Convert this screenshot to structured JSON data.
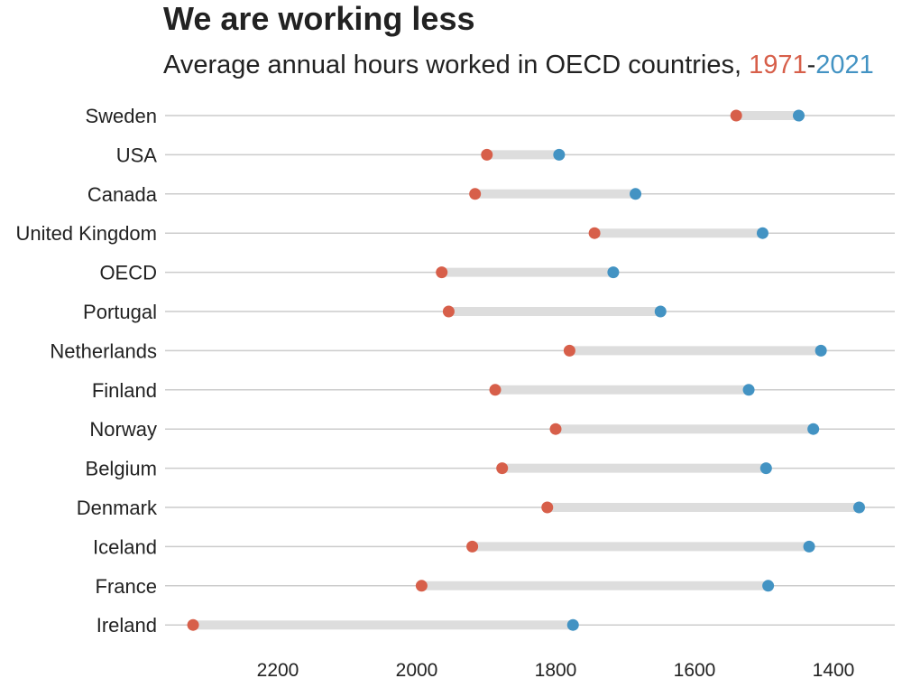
{
  "chart_data": {
    "type": "dumbbell",
    "title": "We are working less",
    "subtitle_prefix": "Average annual hours worked in OECD countries, ",
    "subtitle_start": "1971",
    "subtitle_separator": "-",
    "subtitle_end": "2021",
    "colors": {
      "start": "#d75f4a",
      "end": "#4393c3",
      "connector": "#dddddd",
      "gridline": "#cccccc",
      "text": "#222222"
    },
    "x_axis": {
      "reversed": true,
      "range": [
        2320,
        1360
      ],
      "ticks": [
        2200,
        2000,
        1800,
        1600,
        1400
      ]
    },
    "series": [
      {
        "name": "1971",
        "color_key": "start"
      },
      {
        "name": "2021",
        "color_key": "end"
      }
    ],
    "countries": [
      {
        "name": "Sweden",
        "start": 1540,
        "end": 1450
      },
      {
        "name": "USA",
        "start": 1899,
        "end": 1795
      },
      {
        "name": "Canada",
        "start": 1916,
        "end": 1685
      },
      {
        "name": "United Kingdom",
        "start": 1744,
        "end": 1502
      },
      {
        "name": "OECD",
        "start": 1964,
        "end": 1717
      },
      {
        "name": "Portugal",
        "start": 1954,
        "end": 1649
      },
      {
        "name": "Netherlands",
        "start": 1780,
        "end": 1418
      },
      {
        "name": "Finland",
        "start": 1887,
        "end": 1522
      },
      {
        "name": "Norway",
        "start": 1800,
        "end": 1429
      },
      {
        "name": "Belgium",
        "start": 1877,
        "end": 1497
      },
      {
        "name": "Denmark",
        "start": 1812,
        "end": 1363
      },
      {
        "name": "Iceland",
        "start": 1920,
        "end": 1435
      },
      {
        "name": "France",
        "start": 1993,
        "end": 1494
      },
      {
        "name": "Ireland",
        "start": 2322,
        "end": 1775
      }
    ]
  }
}
